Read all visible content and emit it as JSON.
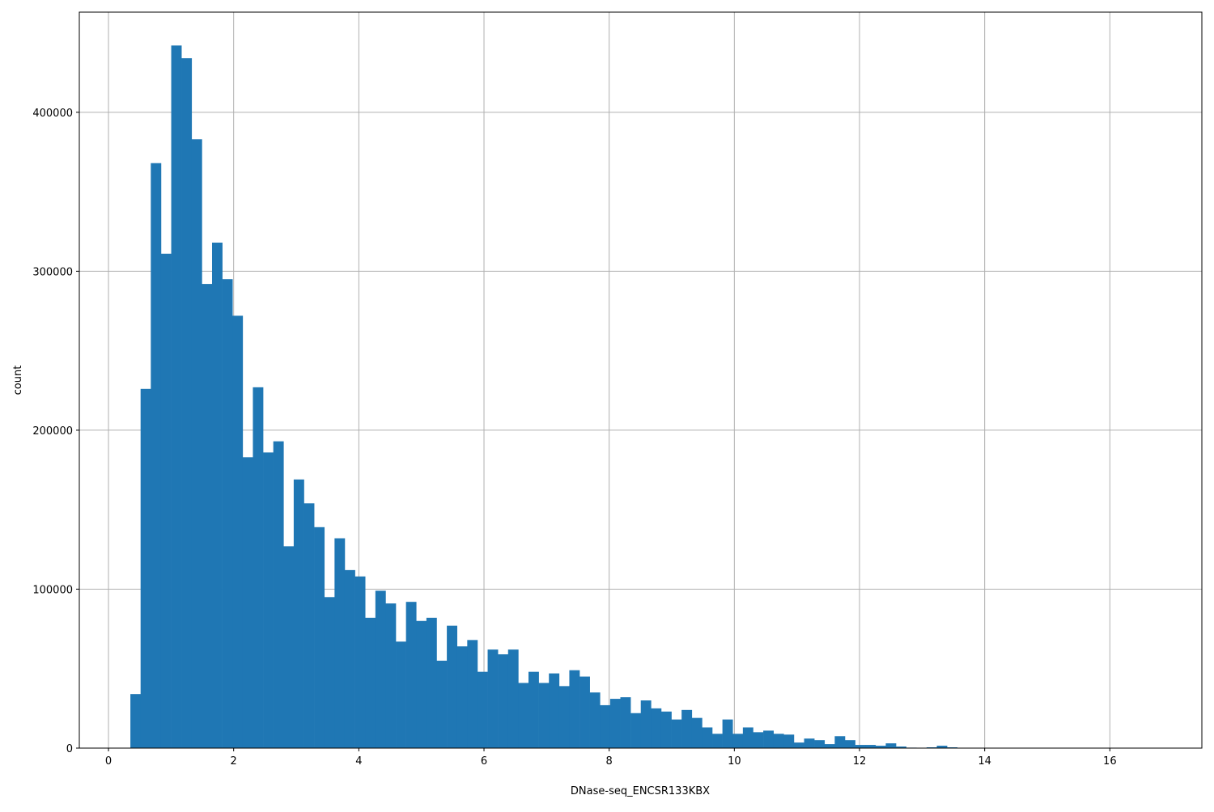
{
  "chart_data": {
    "type": "bar",
    "subtype": "histogram",
    "title": "",
    "xlabel": "DNase-seq_ENCSR133KBX",
    "ylabel": "count",
    "xlim": [
      -0.466,
      17.47
    ],
    "ylim": [
      0,
      463000
    ],
    "grid": true,
    "bar_color": "#1f77b4",
    "grid_color": "#b0b0b0",
    "bin_start": 0.35,
    "bin_width": 0.1631,
    "values": [
      34000,
      226000,
      368000,
      311000,
      442000,
      434000,
      383000,
      292000,
      318000,
      295000,
      272000,
      183000,
      227000,
      186000,
      193000,
      127000,
      169000,
      154000,
      139000,
      95000,
      132000,
      112000,
      108000,
      82000,
      99000,
      91000,
      67000,
      92000,
      80000,
      82000,
      55000,
      77000,
      64000,
      68000,
      48000,
      62000,
      59000,
      62000,
      41000,
      48000,
      41000,
      47000,
      39000,
      49000,
      45000,
      35000,
      27000,
      31000,
      32000,
      22000,
      30000,
      25000,
      23000,
      18000,
      24000,
      19000,
      13000,
      9000,
      18000,
      9000,
      13000,
      10000,
      11000,
      9000,
      8500,
      3500,
      6000,
      5000,
      2500,
      7500,
      5000,
      2000,
      2000,
      1500,
      3000,
      1000,
      300,
      0,
      500,
      1500,
      500,
      0,
      0,
      0,
      0,
      0,
      0,
      0,
      0,
      0,
      0,
      0,
      0,
      0,
      0,
      0,
      0,
      0,
      0,
      0
    ],
    "xticks": [
      0,
      2,
      4,
      6,
      8,
      10,
      12,
      14,
      16
    ],
    "xtick_labels": [
      "0",
      "2",
      "4",
      "6",
      "8",
      "10",
      "12",
      "14",
      "16"
    ],
    "yticks": [
      0,
      100000,
      200000,
      300000,
      400000
    ],
    "ytick_labels": [
      "0",
      "100000",
      "200000",
      "300000",
      "400000"
    ]
  }
}
